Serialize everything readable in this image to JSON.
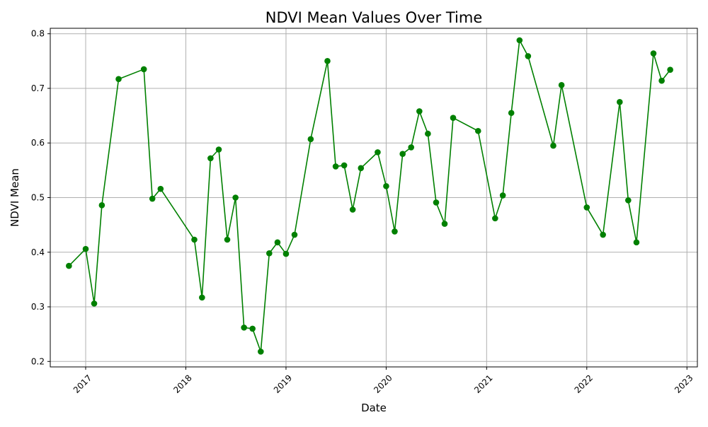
{
  "chart_data": {
    "type": "line",
    "title": "NDVI Mean Values Over Time",
    "xlabel": "Date",
    "ylabel": "NDVI Mean",
    "x_axis": "date",
    "xlim": [
      "2016-08-25",
      "2023-02-08"
    ],
    "ylim": [
      0.19,
      0.81
    ],
    "x_ticks": [
      "2017-01-01",
      "2018-01-01",
      "2019-01-01",
      "2020-01-01",
      "2021-01-01",
      "2022-01-01",
      "2023-01-01"
    ],
    "x_tick_labels": [
      "2017",
      "2018",
      "2019",
      "2020",
      "2021",
      "2022",
      "2023"
    ],
    "x_tick_label_rotation": 45,
    "y_ticks": [
      0.2,
      0.3,
      0.4,
      0.5,
      0.6,
      0.7,
      0.8
    ],
    "y_tick_labels": [
      "0.2",
      "0.3",
      "0.4",
      "0.5",
      "0.6",
      "0.7",
      "0.8"
    ],
    "grid": true,
    "legend": "none",
    "series": [
      {
        "color": "#008000",
        "marker": "circle",
        "x": [
          "2016-11-01",
          "2017-01-01",
          "2017-02-01",
          "2017-03-01",
          "2017-05-01",
          "2017-08-01",
          "2017-09-01",
          "2017-10-01",
          "2018-02-01",
          "2018-03-01",
          "2018-04-01",
          "2018-05-01",
          "2018-06-01",
          "2018-07-01",
          "2018-08-01",
          "2018-09-01",
          "2018-10-01",
          "2018-11-01",
          "2018-12-01",
          "2019-01-01",
          "2019-02-01",
          "2019-04-01",
          "2019-06-01",
          "2019-07-01",
          "2019-08-01",
          "2019-09-01",
          "2019-10-01",
          "2019-12-01",
          "2020-01-01",
          "2020-02-01",
          "2020-03-01",
          "2020-04-01",
          "2020-05-01",
          "2020-06-01",
          "2020-07-01",
          "2020-08-01",
          "2020-09-01",
          "2020-12-01",
          "2021-02-01",
          "2021-03-01",
          "2021-04-01",
          "2021-05-01",
          "2021-06-01",
          "2021-09-01",
          "2021-10-01",
          "2022-01-01",
          "2022-03-01",
          "2022-05-01",
          "2022-06-01",
          "2022-07-01",
          "2022-09-01",
          "2022-10-01",
          "2022-11-01"
        ],
        "values": [
          0.375,
          0.406,
          0.306,
          0.486,
          0.717,
          0.735,
          0.498,
          0.516,
          0.423,
          0.317,
          0.572,
          0.588,
          0.423,
          0.5,
          0.262,
          0.26,
          0.218,
          0.398,
          0.418,
          0.397,
          0.432,
          0.607,
          0.75,
          0.557,
          0.559,
          0.478,
          0.554,
          0.583,
          0.521,
          0.438,
          0.58,
          0.592,
          0.658,
          0.617,
          0.491,
          0.452,
          0.646,
          0.622,
          0.462,
          0.504,
          0.655,
          0.788,
          0.759,
          0.595,
          0.706,
          0.482,
          0.432,
          0.675,
          0.495,
          0.418,
          0.764,
          0.714,
          0.734
        ]
      }
    ]
  }
}
